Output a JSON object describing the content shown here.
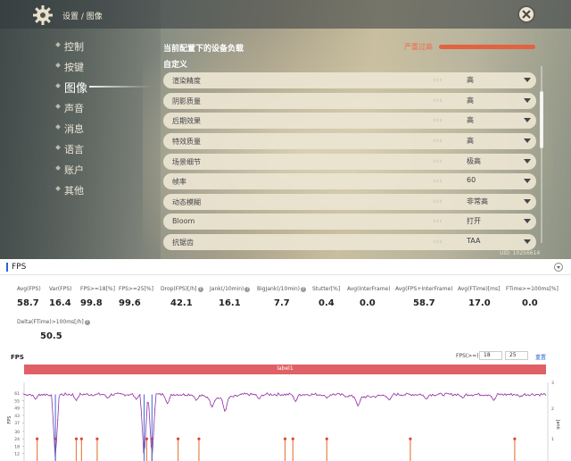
{
  "game": {
    "breadcrumb": "设置 / 图像",
    "menu": [
      {
        "label": "控制",
        "active": false
      },
      {
        "label": "按键",
        "active": false
      },
      {
        "label": "图像",
        "active": true
      },
      {
        "label": "声音",
        "active": false
      },
      {
        "label": "消息",
        "active": false
      },
      {
        "label": "语言",
        "active": false
      },
      {
        "label": "账户",
        "active": false
      },
      {
        "label": "其他",
        "active": false
      }
    ],
    "load_title": "当前配置下的设备负载",
    "load_level": "严重过高",
    "load_color": "#e2633f",
    "custom_title": "自定义",
    "settings": [
      {
        "name": "渲染精度",
        "value": "高"
      },
      {
        "name": "阴影质量",
        "value": "高"
      },
      {
        "name": "后期效果",
        "value": "高"
      },
      {
        "name": "特效质量",
        "value": "高"
      },
      {
        "name": "场景细节",
        "value": "极高"
      },
      {
        "name": "帧率",
        "value": "60"
      },
      {
        "name": "动态模糊",
        "value": "非常高"
      },
      {
        "name": "Bloom",
        "value": "打开"
      },
      {
        "name": "抗锯齿",
        "value": "TAA"
      }
    ],
    "uid": "UID: 10256614"
  },
  "fps_panel": {
    "title": "FPS",
    "metrics": [
      {
        "label": "Avg(FPS)",
        "value": "58.7",
        "help": false
      },
      {
        "label": "Var(FPS)",
        "value": "16.4",
        "help": false
      },
      {
        "label": "FPS>=18[%]",
        "value": "99.8",
        "help": false
      },
      {
        "label": "FPS>=25[%]",
        "value": "99.6",
        "help": false
      },
      {
        "label": "Drop(FPS)[/h]",
        "value": "42.1",
        "help": true
      },
      {
        "label": "Jank(/10min)",
        "value": "16.1",
        "help": true
      },
      {
        "label": "BigJank(/10min)",
        "value": "7.7",
        "help": true
      },
      {
        "label": "Stutter[%]",
        "value": "0.4",
        "help": false
      },
      {
        "label": "Avg(InterFrame)",
        "value": "0.0",
        "help": false
      },
      {
        "label": "Avg(FPS+InterFrame)",
        "value": "58.7",
        "help": false
      },
      {
        "label": "Avg(FTime)[ms]",
        "value": "17.0",
        "help": false
      },
      {
        "label": "FTime>=100ms[%]",
        "value": "0.0",
        "help": false
      },
      {
        "label": "Delta(FTime)>100ms[/h]",
        "value": "50.5",
        "help": true
      }
    ],
    "chart_title": "FPS",
    "threshold_label": "FPS(>=)",
    "threshold_values": [
      "18",
      "25"
    ],
    "settings_link": "重置",
    "label_bar": "label1",
    "label_color": "#e06065"
  },
  "chart_data": {
    "type": "line",
    "title": "FPS",
    "ylabel": "FPS",
    "y2label": "Jank",
    "yticks": [
      "61",
      "55",
      "49",
      "43",
      "37",
      "30",
      "24",
      "18",
      "12"
    ],
    "y2ticks": [
      "3",
      "2",
      "1"
    ],
    "ylim": [
      6,
      64
    ],
    "series": [
      {
        "name": "FPS",
        "color": "#8a2fa6",
        "baseline": 60,
        "dips": [
          {
            "x": 0.022,
            "y": 56
          },
          {
            "x": 0.05,
            "y": 59
          },
          {
            "x": 0.06,
            "y": 6
          },
          {
            "x": 0.1,
            "y": 55
          },
          {
            "x": 0.16,
            "y": 57
          },
          {
            "x": 0.215,
            "y": 56
          },
          {
            "x": 0.23,
            "y": 6
          },
          {
            "x": 0.245,
            "y": 6
          },
          {
            "x": 0.275,
            "y": 52
          },
          {
            "x": 0.33,
            "y": 55
          },
          {
            "x": 0.36,
            "y": 52
          },
          {
            "x": 0.385,
            "y": 48
          },
          {
            "x": 0.45,
            "y": 56
          },
          {
            "x": 0.52,
            "y": 54
          },
          {
            "x": 0.58,
            "y": 57
          },
          {
            "x": 0.64,
            "y": 52
          },
          {
            "x": 0.7,
            "y": 55
          },
          {
            "x": 0.77,
            "y": 56
          },
          {
            "x": 0.84,
            "y": 57
          },
          {
            "x": 0.9,
            "y": 55
          },
          {
            "x": 0.95,
            "y": 58
          }
        ]
      },
      {
        "name": "Jank",
        "color": "#e8804a",
        "marks": [
          0.025,
          0.06,
          0.1,
          0.11,
          0.14,
          0.235,
          0.245,
          0.295,
          0.335,
          0.5,
          0.515,
          0.58,
          0.74,
          0.94
        ]
      }
    ]
  }
}
